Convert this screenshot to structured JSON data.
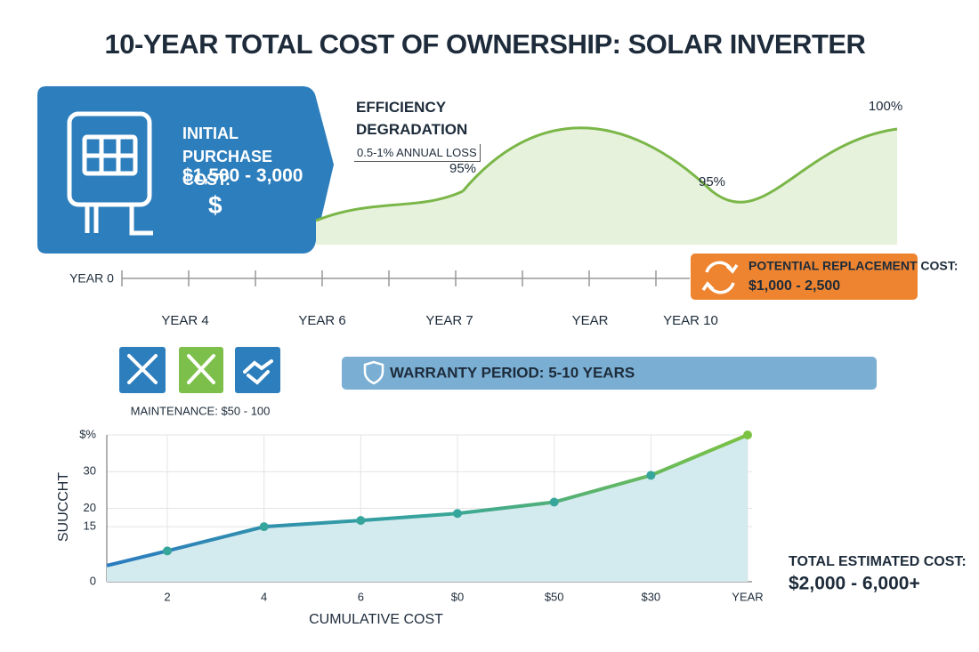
{
  "title": "10-YEAR TOTAL COST OF OWNERSHIP: SOLAR INVERTER",
  "purchase_card": {
    "label": "INITIAL PURCHASE COST:",
    "range": "$1,500 - 3,000",
    "symbol": "$"
  },
  "timeline": {
    "start": "YEAR 0",
    "labels": [
      "YEAR 4",
      "YEAR 6",
      "YEAR 7",
      "YEAR",
      "YEAR 10"
    ]
  },
  "replacement": {
    "label": "POTENTIAL REPLACEMENT COST:",
    "range": "$1,000 - 2,500"
  },
  "maintenance": "MAINTENANCE: $50 - 100",
  "warranty": "WARRANTY PERIOD: 5-10 YEARS",
  "total": {
    "label": "TOTAL ESTIMATED COST:",
    "range": "$2,000 - 6,000+"
  },
  "chart_data": [
    {
      "type": "area",
      "title": "EFFICIENCY DEGRADATION",
      "subtitle": "0.5-1% ANNUAL LOSS",
      "values": [
        95,
        95,
        100
      ],
      "value_labels": [
        "95%",
        "95%",
        "100%"
      ],
      "color": "#7ab648",
      "fill": "#e6f2dc"
    },
    {
      "type": "line",
      "categories": [
        null,
        "2",
        "4",
        "6",
        "$0",
        "$50",
        "$30",
        "YEAR"
      ],
      "values": [
        4.4,
        8.4,
        15,
        16.7,
        18.6,
        21.7,
        29,
        40
      ],
      "xlabel": "CUMULATIVE COST",
      "ylabel": "SUUCCHT",
      "ylim": [
        0,
        40
      ],
      "yticks": [
        0,
        15,
        20,
        30,
        {
          "value": 40,
          "label": "$%"
        }
      ],
      "grid": true,
      "gradient": [
        "#2b7bbf",
        "#36a59c",
        "#7cc242"
      ],
      "fill": "#d3eaee"
    }
  ]
}
